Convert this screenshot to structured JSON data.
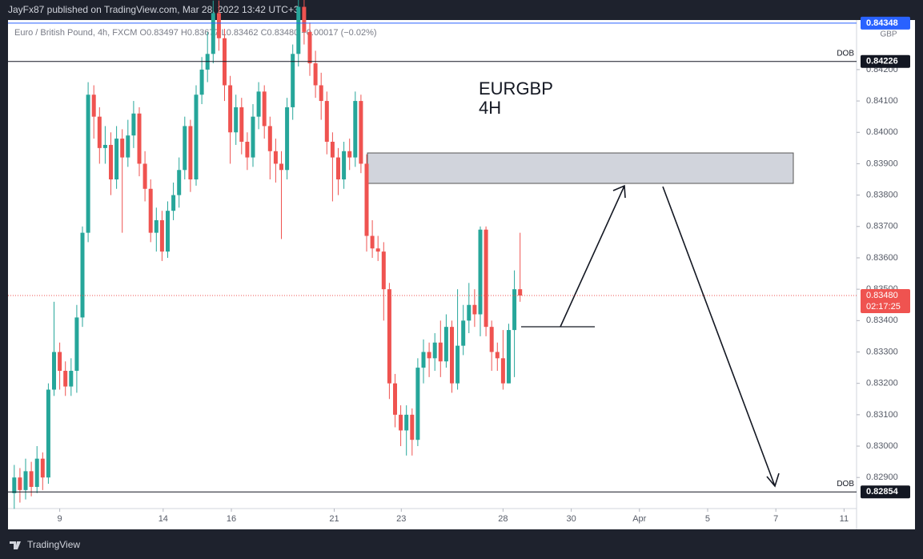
{
  "header": {
    "publisher": "JayFx87 published on TradingView.com, Mar 28, 2022 13:42 UTC+3",
    "brand": "TradingView"
  },
  "chart_data": {
    "type": "candlestick",
    "legend": "Euro / British Pound, 4h, FXCM  O0.83497  H0.83677  L0.83462  C0.83480  −0.00017 (−0.02%)",
    "annotations": [
      "EURGBP",
      "4H"
    ],
    "currency": "GBP",
    "up_color": "#26a69a",
    "down_color": "#ef5350",
    "grid": false,
    "xlim": [
      -1.1,
      148.2
    ],
    "xticks": [
      {
        "value": 8,
        "label": "9"
      },
      {
        "value": 26.2,
        "label": "14"
      },
      {
        "value": 38.2,
        "label": "16"
      },
      {
        "value": 56.3,
        "label": "21"
      },
      {
        "value": 68.1,
        "label": "23"
      },
      {
        "value": 86,
        "label": "28"
      },
      {
        "value": 98,
        "label": "30"
      },
      {
        "value": 110,
        "label": "Apr"
      },
      {
        "value": 122,
        "label": "5"
      },
      {
        "value": 134,
        "label": "7"
      },
      {
        "value": 146,
        "label": "11"
      }
    ],
    "ylim": [
      0.82801,
      0.84358
    ],
    "yticks": [
      {
        "value": 0.829,
        "label": "0.82900"
      },
      {
        "value": 0.83,
        "label": "0.83000"
      },
      {
        "value": 0.831,
        "label": "0.83100"
      },
      {
        "value": 0.832,
        "label": "0.83200"
      },
      {
        "value": 0.833,
        "label": "0.83300"
      },
      {
        "value": 0.834,
        "label": "0.83400"
      },
      {
        "value": 0.835,
        "label": "0.83500"
      },
      {
        "value": 0.836,
        "label": "0.83600"
      },
      {
        "value": 0.837,
        "label": "0.83700"
      },
      {
        "value": 0.838,
        "label": "0.83800"
      },
      {
        "value": 0.839,
        "label": "0.83900"
      },
      {
        "value": 0.84,
        "label": "0.84000"
      },
      {
        "value": 0.841,
        "label": "0.84100"
      },
      {
        "value": 0.842,
        "label": "0.84200"
      }
    ],
    "levels": [
      {
        "value": 0.84348,
        "color": "#2962ff"
      },
      {
        "value": 0.84226,
        "color": "#131722",
        "tag": "DOB"
      },
      {
        "value": 0.82854,
        "color": "#131722",
        "tag": "DOB"
      }
    ],
    "current": {
      "value": 0.8348,
      "label": "0.83480",
      "countdown": "02:17:25",
      "color": "#ef5350"
    },
    "candles": [
      [
        0.8285,
        0.8294,
        0.828,
        0.829
      ],
      [
        0.829,
        0.8293,
        0.8282,
        0.8286
      ],
      [
        0.8286,
        0.8296,
        0.8283,
        0.8292
      ],
      [
        0.8292,
        0.8295,
        0.8284,
        0.8287
      ],
      [
        0.8287,
        0.83,
        0.8285,
        0.8296
      ],
      [
        0.8296,
        0.8298,
        0.8286,
        0.829
      ],
      [
        0.829,
        0.832,
        0.8288,
        0.8318
      ],
      [
        0.8318,
        0.8346,
        0.8316,
        0.833
      ],
      [
        0.833,
        0.8333,
        0.8318,
        0.8324
      ],
      [
        0.8324,
        0.8327,
        0.8316,
        0.8319
      ],
      [
        0.8319,
        0.8328,
        0.8316,
        0.8324
      ],
      [
        0.8324,
        0.8345,
        0.8317,
        0.8341
      ],
      [
        0.8341,
        0.837,
        0.8338,
        0.8368
      ],
      [
        0.8368,
        0.8416,
        0.8365,
        0.8412
      ],
      [
        0.8412,
        0.8415,
        0.8398,
        0.8405
      ],
      [
        0.8405,
        0.8408,
        0.839,
        0.8395
      ],
      [
        0.8395,
        0.8402,
        0.839,
        0.8396
      ],
      [
        0.8396,
        0.84,
        0.838,
        0.8385
      ],
      [
        0.8385,
        0.8402,
        0.8382,
        0.8398
      ],
      [
        0.8398,
        0.8401,
        0.8368,
        0.8392
      ],
      [
        0.8392,
        0.8404,
        0.8389,
        0.8399
      ],
      [
        0.8399,
        0.841,
        0.8395,
        0.8406
      ],
      [
        0.8406,
        0.8408,
        0.8386,
        0.839
      ],
      [
        0.839,
        0.8394,
        0.8378,
        0.8382
      ],
      [
        0.8382,
        0.8385,
        0.8365,
        0.8368
      ],
      [
        0.8368,
        0.8376,
        0.8362,
        0.8372
      ],
      [
        0.8372,
        0.8375,
        0.8359,
        0.8362
      ],
      [
        0.8362,
        0.8378,
        0.836,
        0.8375
      ],
      [
        0.8375,
        0.8384,
        0.8372,
        0.838
      ],
      [
        0.838,
        0.8392,
        0.8376,
        0.8388
      ],
      [
        0.8388,
        0.8405,
        0.8385,
        0.8402
      ],
      [
        0.8402,
        0.8404,
        0.8381,
        0.8385
      ],
      [
        0.8385,
        0.8415,
        0.8383,
        0.8412
      ],
      [
        0.8412,
        0.8424,
        0.8409,
        0.842
      ],
      [
        0.842,
        0.8432,
        0.8416,
        0.8425
      ],
      [
        0.8425,
        0.8442,
        0.8422,
        0.8438
      ],
      [
        0.8438,
        0.8442,
        0.8426,
        0.843
      ],
      [
        0.843,
        0.8433,
        0.841,
        0.8415
      ],
      [
        0.8415,
        0.8418,
        0.839,
        0.84
      ],
      [
        0.84,
        0.8412,
        0.8396,
        0.8408
      ],
      [
        0.8408,
        0.8411,
        0.8393,
        0.8397
      ],
      [
        0.8397,
        0.84,
        0.8388,
        0.8392
      ],
      [
        0.8392,
        0.8409,
        0.8389,
        0.8405
      ],
      [
        0.8405,
        0.8416,
        0.8401,
        0.8413
      ],
      [
        0.8413,
        0.8415,
        0.8398,
        0.8402
      ],
      [
        0.8402,
        0.8405,
        0.8385,
        0.8394
      ],
      [
        0.8394,
        0.8398,
        0.8384,
        0.839
      ],
      [
        0.839,
        0.8394,
        0.8366,
        0.8388
      ],
      [
        0.8388,
        0.8411,
        0.8385,
        0.8408
      ],
      [
        0.8408,
        0.8428,
        0.8404,
        0.8425
      ],
      [
        0.8425,
        0.8443,
        0.8421,
        0.844
      ],
      [
        0.844,
        0.8443,
        0.8428,
        0.8432
      ],
      [
        0.8432,
        0.8435,
        0.8418,
        0.8422
      ],
      [
        0.8422,
        0.8426,
        0.8411,
        0.8415
      ],
      [
        0.8415,
        0.8419,
        0.8404,
        0.841
      ],
      [
        0.841,
        0.8413,
        0.8393,
        0.8397
      ],
      [
        0.8397,
        0.84,
        0.8378,
        0.8392
      ],
      [
        0.8392,
        0.8395,
        0.838,
        0.8385
      ],
      [
        0.8385,
        0.8397,
        0.8382,
        0.8394
      ],
      [
        0.8394,
        0.8398,
        0.8388,
        0.8392
      ],
      [
        0.8392,
        0.8413,
        0.8389,
        0.841
      ],
      [
        0.841,
        0.8412,
        0.8387,
        0.839
      ],
      [
        0.839,
        0.8393,
        0.8362,
        0.8367
      ],
      [
        0.8367,
        0.8372,
        0.836,
        0.8363
      ],
      [
        0.8363,
        0.8367,
        0.8359,
        0.8362
      ],
      [
        0.8362,
        0.8365,
        0.834,
        0.835
      ],
      [
        0.835,
        0.8352,
        0.8315,
        0.832
      ],
      [
        0.832,
        0.8323,
        0.8306,
        0.831
      ],
      [
        0.831,
        0.8313,
        0.83,
        0.8305
      ],
      [
        0.8305,
        0.8313,
        0.8297,
        0.831
      ],
      [
        0.831,
        0.8312,
        0.8297,
        0.8302
      ],
      [
        0.8302,
        0.8328,
        0.83,
        0.8325
      ],
      [
        0.8325,
        0.8334,
        0.832,
        0.833
      ],
      [
        0.833,
        0.8333,
        0.8322,
        0.8328
      ],
      [
        0.8328,
        0.8336,
        0.8324,
        0.8333
      ],
      [
        0.8333,
        0.834,
        0.8322,
        0.8327
      ],
      [
        0.8327,
        0.8342,
        0.8325,
        0.8338
      ],
      [
        0.8338,
        0.834,
        0.8317,
        0.832
      ],
      [
        0.832,
        0.835,
        0.8318,
        0.8332
      ],
      [
        0.8332,
        0.8345,
        0.8329,
        0.834
      ],
      [
        0.834,
        0.8352,
        0.8336,
        0.8345
      ],
      [
        0.8345,
        0.835,
        0.8338,
        0.8342
      ],
      [
        0.8342,
        0.837,
        0.8335,
        0.8369
      ],
      [
        0.8369,
        0.837,
        0.8335,
        0.8338
      ],
      [
        0.8338,
        0.834,
        0.8324,
        0.833
      ],
      [
        0.833,
        0.8333,
        0.8324,
        0.8328
      ],
      [
        0.8328,
        0.8337,
        0.8318,
        0.832
      ],
      [
        0.832,
        0.8339,
        0.832,
        0.8337
      ],
      [
        0.8337,
        0.8356,
        0.8322,
        0.835
      ],
      [
        0.835,
        0.8368,
        0.8346,
        0.8348
      ]
    ]
  }
}
